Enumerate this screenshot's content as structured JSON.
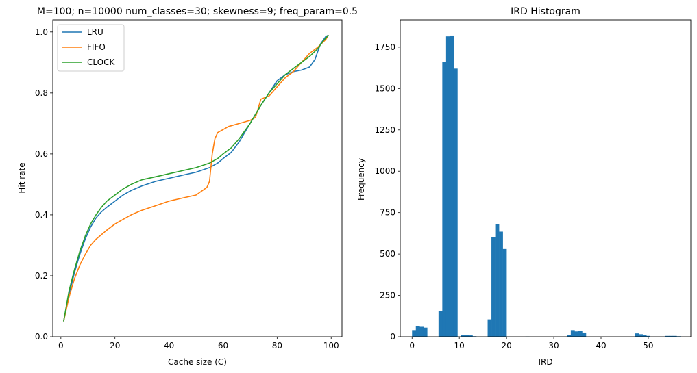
{
  "chart_data": [
    {
      "type": "line",
      "title": "M=100; n=10000 num_classes=30; skewness=9; freq_param=0.5",
      "xlabel": "Cache size (C)",
      "ylabel": "Hit rate",
      "xlim": [
        -3,
        104
      ],
      "ylim": [
        0.0,
        1.04
      ],
      "xticks": [
        0,
        20,
        40,
        60,
        80,
        100
      ],
      "yticks": [
        0.0,
        0.2,
        0.4,
        0.6,
        0.8,
        1.0
      ],
      "xtick_labels": [
        "0",
        "20",
        "40",
        "60",
        "80",
        "100"
      ],
      "ytick_labels": [
        "0.0",
        "0.2",
        "0.4",
        "0.6",
        "0.8",
        "1.0"
      ],
      "grid": false,
      "legend": "upper-left",
      "series": [
        {
          "name": "LRU",
          "color": "#1f77b4",
          "x": [
            1,
            3,
            5,
            7,
            9,
            11,
            13,
            15,
            17,
            20,
            23,
            26,
            30,
            35,
            40,
            45,
            50,
            55,
            58,
            60,
            63,
            66,
            70,
            74,
            77,
            80,
            83,
            86,
            89,
            92,
            94,
            96,
            98,
            99
          ],
          "y": [
            0.05,
            0.14,
            0.21,
            0.27,
            0.32,
            0.36,
            0.39,
            0.41,
            0.425,
            0.445,
            0.465,
            0.48,
            0.495,
            0.51,
            0.52,
            0.53,
            0.54,
            0.555,
            0.57,
            0.585,
            0.605,
            0.64,
            0.7,
            0.76,
            0.8,
            0.84,
            0.86,
            0.87,
            0.875,
            0.885,
            0.91,
            0.96,
            0.985,
            0.99
          ]
        },
        {
          "name": "FIFO",
          "color": "#ff7f0e",
          "x": [
            1,
            3,
            5,
            7,
            9,
            11,
            13,
            15,
            17,
            20,
            23,
            26,
            30,
            35,
            40,
            45,
            50,
            54,
            55,
            56,
            57,
            58,
            60,
            62,
            66,
            70,
            72,
            74,
            77,
            80,
            83,
            86,
            89,
            92,
            95,
            98,
            99
          ],
          "y": [
            0.05,
            0.13,
            0.19,
            0.235,
            0.27,
            0.3,
            0.32,
            0.335,
            0.35,
            0.37,
            0.385,
            0.4,
            0.415,
            0.43,
            0.445,
            0.455,
            0.465,
            0.49,
            0.51,
            0.6,
            0.65,
            0.67,
            0.68,
            0.69,
            0.7,
            0.71,
            0.72,
            0.78,
            0.79,
            0.82,
            0.85,
            0.87,
            0.9,
            0.93,
            0.95,
            0.975,
            0.99
          ]
        },
        {
          "name": "CLOCK",
          "color": "#2ca02c",
          "x": [
            1,
            3,
            5,
            7,
            9,
            11,
            13,
            15,
            17,
            20,
            23,
            26,
            30,
            35,
            40,
            45,
            50,
            55,
            58,
            60,
            63,
            66,
            70,
            74,
            77,
            80,
            83,
            86,
            89,
            92,
            95,
            97,
            99
          ],
          "y": [
            0.05,
            0.15,
            0.22,
            0.28,
            0.33,
            0.37,
            0.4,
            0.425,
            0.445,
            0.465,
            0.485,
            0.5,
            0.515,
            0.525,
            0.535,
            0.545,
            0.555,
            0.57,
            0.585,
            0.6,
            0.62,
            0.65,
            0.7,
            0.76,
            0.8,
            0.83,
            0.86,
            0.88,
            0.9,
            0.92,
            0.945,
            0.97,
            0.99
          ]
        }
      ]
    },
    {
      "type": "bar",
      "title": "IRD Histogram",
      "xlabel": "IRD",
      "ylabel": "Frequency",
      "xlim": [
        -2.5,
        59
      ],
      "ylim": [
        0,
        1915
      ],
      "xticks": [
        0,
        10,
        20,
        30,
        40,
        50
      ],
      "yticks": [
        0,
        250,
        500,
        750,
        1000,
        1250,
        1500,
        1750
      ],
      "xtick_labels": [
        "0",
        "10",
        "20",
        "30",
        "40",
        "50"
      ],
      "ytick_labels": [
        "0",
        "250",
        "500",
        "750",
        "1000",
        "1250",
        "1500",
        "1750"
      ],
      "grid": false,
      "bar_color": "#1f77b4",
      "bin_width": 0.8,
      "bin_start": 0,
      "values": [
        40,
        65,
        60,
        55,
        0,
        0,
        0,
        155,
        1660,
        1815,
        1820,
        1620,
        0,
        10,
        12,
        8,
        3,
        0,
        0,
        0,
        105,
        600,
        680,
        635,
        530,
        0,
        0,
        0,
        0,
        0,
        2,
        0,
        0,
        0,
        0,
        0,
        0,
        0,
        0,
        0,
        0,
        10,
        40,
        32,
        35,
        25,
        0,
        0,
        0,
        0,
        0,
        0,
        0,
        0,
        0,
        0,
        0,
        0,
        0,
        20,
        15,
        10,
        5,
        0,
        0,
        0,
        0,
        5,
        5,
        5,
        3
      ]
    }
  ]
}
